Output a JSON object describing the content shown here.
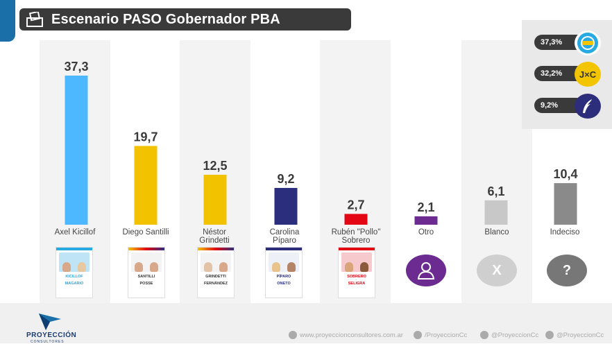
{
  "header": {
    "title": "Escenario PASO Gobernador PBA"
  },
  "legend": [
    {
      "value": "37,3%",
      "logo": "UxP",
      "color": "#27a9e1",
      "icon": "sun-logo-icon"
    },
    {
      "value": "32,2%",
      "logo": "J×C",
      "color": "#f2c500",
      "icon": "jxc-logo-icon"
    },
    {
      "value": "9,2%",
      "logo": "",
      "color": "#2c2e7c",
      "icon": "feather-logo-icon"
    }
  ],
  "chart_data": {
    "type": "bar",
    "title": "Escenario PASO Gobernador PBA",
    "xlabel": "",
    "ylabel": "",
    "ylim": [
      0,
      37.3
    ],
    "categories": [
      "Axel Kicillof",
      "Diego Santilli",
      "Néstor Grindetti",
      "Carolina Píparo",
      "Rubén \"Pollo\" Sobrero",
      "Otro",
      "Blanco",
      "Indeciso"
    ],
    "category_lines": [
      [
        "Axel Kicillof"
      ],
      [
        "Diego Santilli"
      ],
      [
        "Néstor",
        "Grindetti"
      ],
      [
        "Carolina",
        "Píparo"
      ],
      [
        "Rubén \"Pollo\"",
        "Sobrero"
      ],
      [
        "Otro"
      ],
      [
        "Blanco"
      ],
      [
        "Indeciso"
      ]
    ],
    "values": [
      37.3,
      19.7,
      12.5,
      9.2,
      2.7,
      2.1,
      6.1,
      10.4
    ],
    "value_labels": [
      "37,3",
      "19,7",
      "12,5",
      "9,2",
      "2,7",
      "2,1",
      "6,1",
      "10,4"
    ],
    "colors": [
      "#4db8ff",
      "#f2c200",
      "#f2c200",
      "#2b2e7d",
      "#e30613",
      "#6b2b91",
      "#c8c8c8",
      "#8a8a8a"
    ],
    "grid": false,
    "legend": "top-right"
  },
  "cards": [
    {
      "names": [
        "KICILLOF",
        "MAGARIO"
      ],
      "brand": "#27a9e1",
      "icon": "kicillof-ballot-icon"
    },
    {
      "names": [
        "SANTILLI",
        "POSSE"
      ],
      "brand": "#f2c500",
      "icon": "santilli-ballot-icon"
    },
    {
      "names": [
        "GRINDETTI",
        "FERNÁNDEZ"
      ],
      "brand": "#f2c500",
      "icon": "grindetti-ballot-icon"
    },
    {
      "names": [
        "PÍPARO",
        "ONETO"
      ],
      "brand": "#2c2e7c",
      "icon": "piparo-ballot-icon"
    },
    {
      "names": [
        "SOBRERO",
        "SELIGRA"
      ],
      "brand": "#e30613",
      "icon": "sobrero-ballot-icon"
    }
  ],
  "symbols": [
    {
      "glyph": "",
      "color": "#6b2b91",
      "icon": "person-icon"
    },
    {
      "glyph": "X",
      "color": "#cfcfcf",
      "icon": "x-icon"
    },
    {
      "glyph": "?",
      "color": "#777777",
      "icon": "question-icon"
    }
  ],
  "footer": {
    "brand": "PROYECCIÓN",
    "brand_sub": "CONSULTORES",
    "website": "www.proyeccionconsultores.com.ar",
    "facebook": "/ProyeccionCc",
    "twitter": "@ProyeccionCc",
    "instagram": "@ProyeccionCc"
  }
}
